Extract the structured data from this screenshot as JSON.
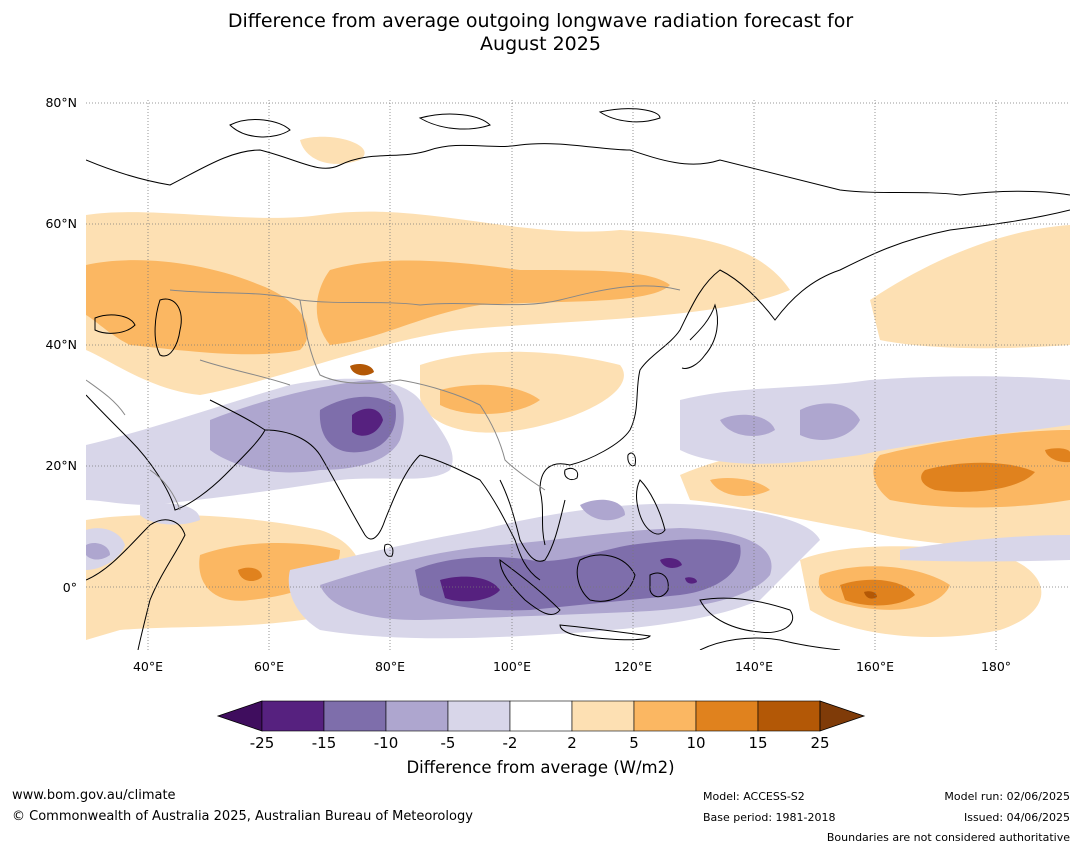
{
  "title_line1": "Difference from average outgoing longwave radiation forecast for",
  "title_line2": "August 2025",
  "lat_labels": [
    "80°N",
    "60°N",
    "40°N",
    "20°N",
    "0°"
  ],
  "lon_labels": [
    "40°E",
    "60°E",
    "80°E",
    "100°E",
    "120°E",
    "140°E",
    "160°E",
    "180°"
  ],
  "colorbar": {
    "ticks": [
      "-25",
      "-15",
      "-10",
      "-5",
      "-2",
      "2",
      "5",
      "10",
      "15",
      "25"
    ],
    "colors": [
      "#3f0d5e",
      "#56217f",
      "#7e6eab",
      "#aea6cf",
      "#d8d6e9",
      "#ffffff",
      "#fde0b3",
      "#fbb762",
      "#e0821e",
      "#b35806",
      "#7f3b08"
    ],
    "label": "Difference from average (W/m2)"
  },
  "footer": {
    "website": "www.bom.gov.au/climate",
    "copyright": "© Commonwealth of Australia 2025, Australian Bureau of Meteorology",
    "model": "Model: ACCESS-S2",
    "base_period": "Base period: 1981-2018",
    "model_run": "Model run: 02/06/2025",
    "issued": "Issued: 04/06/2025",
    "disclaimer": "Boundaries are not considered authoritative"
  }
}
